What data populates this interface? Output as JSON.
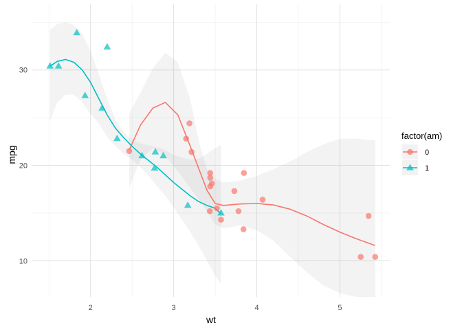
{
  "chart_data": {
    "type": "scatter",
    "title": "",
    "xlabel": "wt",
    "ylabel": "mpg",
    "xlim": [
      1.3,
      5.6
    ],
    "ylim": [
      6.2,
      36.9
    ],
    "x_major_ticks": [
      2,
      3,
      4,
      5
    ],
    "x_minor_ticks": [
      1.5,
      2.5,
      3.5,
      4.5,
      5.5
    ],
    "y_major_ticks": [
      10,
      20,
      30
    ],
    "y_minor_ticks": [
      15,
      25,
      35
    ],
    "grid": true,
    "legend": {
      "title": "factor(am)",
      "position": "right",
      "entries": [
        {
          "label": "0",
          "color": "#F8766D",
          "shape": "circle"
        },
        {
          "label": "1",
          "color": "#00BFC4",
          "shape": "triangle"
        }
      ]
    },
    "series": [
      {
        "name": "0",
        "color": "#F8766D",
        "shape": "circle",
        "points": [
          [
            2.465,
            21.5
          ],
          [
            3.215,
            21.4
          ],
          [
            3.44,
            18.7
          ],
          [
            3.46,
            18.1
          ],
          [
            3.57,
            14.3
          ],
          [
            3.19,
            24.4
          ],
          [
            3.15,
            22.8
          ],
          [
            3.44,
            19.2
          ],
          [
            3.44,
            17.8
          ],
          [
            4.07,
            16.4
          ],
          [
            3.73,
            17.3
          ],
          [
            3.78,
            15.2
          ],
          [
            5.25,
            10.4
          ],
          [
            5.424,
            10.4
          ],
          [
            5.345,
            14.7
          ],
          [
            3.52,
            15.5
          ],
          [
            3.435,
            15.2
          ],
          [
            3.84,
            13.3
          ],
          [
            3.845,
            19.2
          ]
        ],
        "smooth": [
          [
            2.465,
            21.6
          ],
          [
            2.6,
            24.2
          ],
          [
            2.75,
            26.0
          ],
          [
            2.9,
            26.6
          ],
          [
            3.05,
            25.3
          ],
          [
            3.2,
            22.0
          ],
          [
            3.3,
            19.7
          ],
          [
            3.4,
            17.4
          ],
          [
            3.5,
            16.0
          ],
          [
            3.6,
            15.8
          ],
          [
            3.8,
            15.95
          ],
          [
            4.0,
            16.0
          ],
          [
            4.2,
            15.85
          ],
          [
            4.4,
            15.4
          ],
          [
            4.6,
            14.7
          ],
          [
            4.8,
            13.8
          ],
          [
            5.0,
            13.0
          ],
          [
            5.2,
            12.3
          ],
          [
            5.424,
            11.6
          ]
        ],
        "band_upper": [
          [
            2.465,
            25.4
          ],
          [
            2.6,
            27.6
          ],
          [
            2.75,
            30.2
          ],
          [
            2.9,
            31.8
          ],
          [
            3.05,
            30.8
          ],
          [
            3.2,
            26.9
          ],
          [
            3.3,
            22.6
          ],
          [
            3.4,
            19.6
          ],
          [
            3.5,
            18.6
          ],
          [
            3.6,
            18.2
          ],
          [
            3.8,
            18.4
          ],
          [
            4.0,
            18.9
          ],
          [
            4.2,
            19.6
          ],
          [
            4.4,
            20.4
          ],
          [
            4.6,
            21.4
          ],
          [
            4.8,
            22.2
          ],
          [
            5.0,
            22.8
          ],
          [
            5.2,
            22.8
          ],
          [
            5.424,
            22.6
          ]
        ],
        "band_lower": [
          [
            2.465,
            17.6
          ],
          [
            2.6,
            20.6
          ],
          [
            2.75,
            21.8
          ],
          [
            2.9,
            21.0
          ],
          [
            3.05,
            19.4
          ],
          [
            3.2,
            17.6
          ],
          [
            3.3,
            16.4
          ],
          [
            3.4,
            15.2
          ],
          [
            3.5,
            13.8
          ],
          [
            3.6,
            13.4
          ],
          [
            3.8,
            13.7
          ],
          [
            4.0,
            13.2
          ],
          [
            4.2,
            12.1
          ],
          [
            4.4,
            10.4
          ],
          [
            4.6,
            8.8
          ],
          [
            4.8,
            7.4
          ],
          [
            5.0,
            6.6
          ],
          [
            5.2,
            6.2
          ],
          [
            5.424,
            6.2
          ]
        ]
      },
      {
        "name": "1",
        "color": "#00BFC4",
        "shape": "triangle",
        "points": [
          [
            2.62,
            21.0
          ],
          [
            2.875,
            21.0
          ],
          [
            2.32,
            22.8
          ],
          [
            2.2,
            32.4
          ],
          [
            1.615,
            30.4
          ],
          [
            1.835,
            33.9
          ],
          [
            1.935,
            27.3
          ],
          [
            2.14,
            26.0
          ],
          [
            1.513,
            30.4
          ],
          [
            3.17,
            15.8
          ],
          [
            2.77,
            19.7
          ],
          [
            2.78,
            21.4
          ],
          [
            3.57,
            15.0
          ]
        ],
        "smooth": [
          [
            1.513,
            30.4
          ],
          [
            1.6,
            30.9
          ],
          [
            1.7,
            31.1
          ],
          [
            1.8,
            30.8
          ],
          [
            1.9,
            30.0
          ],
          [
            2.0,
            28.7
          ],
          [
            2.1,
            27.0
          ],
          [
            2.2,
            25.3
          ],
          [
            2.3,
            23.9
          ],
          [
            2.4,
            22.9
          ],
          [
            2.5,
            22.0
          ],
          [
            2.6,
            21.2
          ],
          [
            2.7,
            20.5
          ],
          [
            2.8,
            19.8
          ],
          [
            2.9,
            19.0
          ],
          [
            3.0,
            18.2
          ],
          [
            3.1,
            17.5
          ],
          [
            3.2,
            16.8
          ],
          [
            3.3,
            16.2
          ],
          [
            3.4,
            15.8
          ],
          [
            3.5,
            15.5
          ],
          [
            3.57,
            14.9
          ]
        ],
        "band_upper": [
          [
            1.513,
            34.2
          ],
          [
            1.6,
            34.8
          ],
          [
            1.7,
            35.0
          ],
          [
            1.8,
            34.7
          ],
          [
            1.9,
            33.8
          ],
          [
            2.0,
            32.0
          ],
          [
            2.1,
            29.6
          ],
          [
            2.2,
            27.0
          ],
          [
            2.3,
            24.8
          ],
          [
            2.4,
            23.5
          ],
          [
            2.5,
            22.7
          ],
          [
            2.6,
            22.3
          ],
          [
            2.7,
            22.1
          ],
          [
            2.8,
            21.9
          ],
          [
            2.9,
            21.6
          ],
          [
            3.0,
            21.1
          ],
          [
            3.1,
            20.8
          ],
          [
            3.2,
            20.6
          ],
          [
            3.3,
            20.7
          ],
          [
            3.4,
            21.2
          ],
          [
            3.5,
            21.8
          ],
          [
            3.57,
            22.2
          ]
        ],
        "band_lower": [
          [
            1.513,
            24.7
          ],
          [
            1.6,
            26.6
          ],
          [
            1.7,
            27.4
          ],
          [
            1.8,
            27.4
          ],
          [
            1.9,
            26.6
          ],
          [
            2.0,
            25.4
          ],
          [
            2.1,
            24.4
          ],
          [
            2.2,
            23.0
          ],
          [
            2.3,
            22.0
          ],
          [
            2.4,
            21.2
          ],
          [
            2.5,
            20.6
          ],
          [
            2.6,
            19.8
          ],
          [
            2.7,
            18.9
          ],
          [
            2.8,
            17.8
          ],
          [
            2.9,
            16.8
          ],
          [
            3.0,
            15.6
          ],
          [
            3.1,
            14.3
          ],
          [
            3.2,
            13.0
          ],
          [
            3.3,
            11.6
          ],
          [
            3.4,
            10.0
          ],
          [
            3.5,
            8.4
          ],
          [
            3.57,
            7.6
          ]
        ]
      }
    ]
  }
}
